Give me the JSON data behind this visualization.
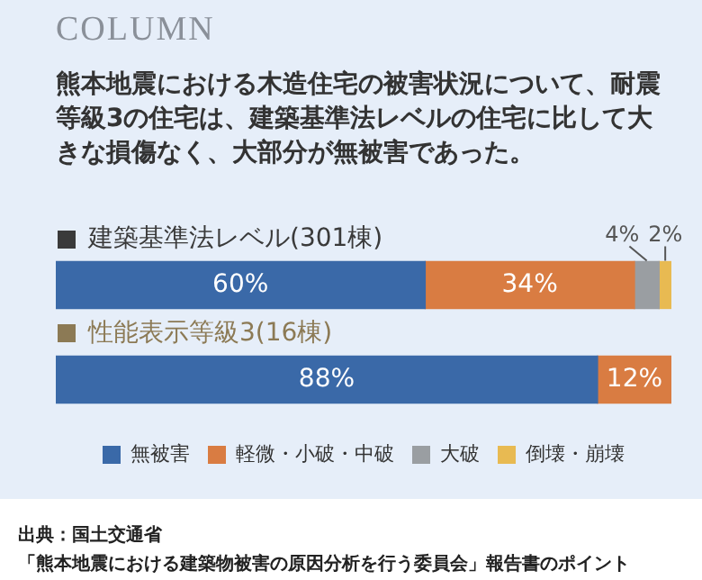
{
  "chart_data": {
    "type": "bar",
    "orientation": "horizontal",
    "stacked": true,
    "title": "COLUMN",
    "subtitle": "熊本地震における木造住宅の被害状況について、耐震等級3の住宅は、建築基準法レベルの住宅に比して大きな損傷なく、大部分が無被害であった。",
    "categories": [
      "建築基準法レベル(301棟)",
      "性能表示等級3(16棟)"
    ],
    "series": [
      {
        "name": "無被害",
        "color": "#3a69a8",
        "values": [
          60,
          88
        ],
        "value_labels": [
          "60%",
          "88%"
        ]
      },
      {
        "name": "軽微・小破・中破",
        "color": "#d97c42",
        "values": [
          34,
          12
        ],
        "value_labels": [
          "34%",
          "12%"
        ]
      },
      {
        "name": "大破",
        "color": "#9a9ea2",
        "values": [
          4,
          null
        ],
        "value_labels": [
          "4%",
          null
        ]
      },
      {
        "name": "倒壊・崩壊",
        "color": "#e8ba52",
        "values": [
          2,
          null
        ],
        "value_labels": [
          "2%",
          null
        ]
      }
    ],
    "xlim": [
      0,
      100
    ],
    "tick_labels": false,
    "legend": "bottom",
    "annotations": [
      "出典：国土交通省",
      "「熊本地震における建築物被害の原因分析を行う委員会」報告書のポイント"
    ]
  }
}
